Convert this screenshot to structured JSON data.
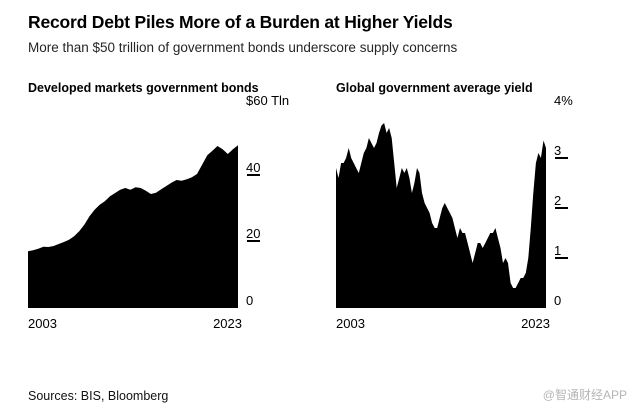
{
  "header": {
    "title": "Record Debt Piles More of a Burden at Higher Yields",
    "subtitle": "More than $50 trillion of government bonds underscore supply concerns"
  },
  "footer": {
    "sources": "Sources: BIS, Bloomberg",
    "watermark": "@智通财经APP"
  },
  "colors": {
    "area": "#000000",
    "axis": "#000000",
    "watermark": "#b5b5b5"
  },
  "chart_data": [
    {
      "type": "area",
      "title": "Developed markets government bonds",
      "unit": "$ Tln",
      "x_labels": [
        "2003",
        "2023"
      ],
      "x_range": [
        2003,
        2023
      ],
      "ylim": [
        0,
        60
      ],
      "ytop_label": "$60 Tln",
      "yticks": [
        {
          "value": 40,
          "label": "40"
        },
        {
          "value": 20,
          "label": "20"
        },
        {
          "value": 0,
          "label": "0"
        }
      ],
      "grid": false,
      "legend": "none",
      "values": [
        17.0,
        17.3,
        17.8,
        18.4,
        18.3,
        18.6,
        19.2,
        19.8,
        20.5,
        21.5,
        23.0,
        25.0,
        27.5,
        29.5,
        31.0,
        32.0,
        33.5,
        34.5,
        35.5,
        36.0,
        35.5,
        36.2,
        36.0,
        35.2,
        34.2,
        34.6,
        35.6,
        36.6,
        37.6,
        38.4,
        38.2,
        38.6,
        39.2,
        40.2,
        43.0,
        45.8,
        47.2,
        48.6,
        47.6,
        46.2,
        47.6,
        48.8
      ]
    },
    {
      "type": "area",
      "title": "Global government average yield",
      "unit": "%",
      "x_labels": [
        "2003",
        "2023"
      ],
      "x_range": [
        2003,
        2023
      ],
      "ylim": [
        0,
        4
      ],
      "ytop_label": "4%",
      "yticks": [
        {
          "value": 3,
          "label": "3"
        },
        {
          "value": 2,
          "label": "2"
        },
        {
          "value": 1,
          "label": "1"
        },
        {
          "value": 0,
          "label": "0"
        }
      ],
      "grid": false,
      "legend": "none",
      "values": [
        2.8,
        2.6,
        2.9,
        2.9,
        3.0,
        3.2,
        3.0,
        2.9,
        2.8,
        2.7,
        2.9,
        3.1,
        3.2,
        3.4,
        3.3,
        3.2,
        3.3,
        3.5,
        3.65,
        3.7,
        3.5,
        3.6,
        3.4,
        2.9,
        2.4,
        2.6,
        2.8,
        2.7,
        2.8,
        2.6,
        2.3,
        2.5,
        2.8,
        2.7,
        2.3,
        2.1,
        2.0,
        1.9,
        1.7,
        1.6,
        1.6,
        1.8,
        2.0,
        2.1,
        2.0,
        1.9,
        1.8,
        1.6,
        1.4,
        1.6,
        1.5,
        1.5,
        1.3,
        1.1,
        0.9,
        1.1,
        1.3,
        1.3,
        1.2,
        1.3,
        1.4,
        1.5,
        1.5,
        1.6,
        1.4,
        1.2,
        0.9,
        1.0,
        0.9,
        0.5,
        0.4,
        0.4,
        0.5,
        0.6,
        0.6,
        0.7,
        1.0,
        1.6,
        2.3,
        2.9,
        3.1,
        3.0,
        3.35,
        3.2
      ]
    }
  ]
}
